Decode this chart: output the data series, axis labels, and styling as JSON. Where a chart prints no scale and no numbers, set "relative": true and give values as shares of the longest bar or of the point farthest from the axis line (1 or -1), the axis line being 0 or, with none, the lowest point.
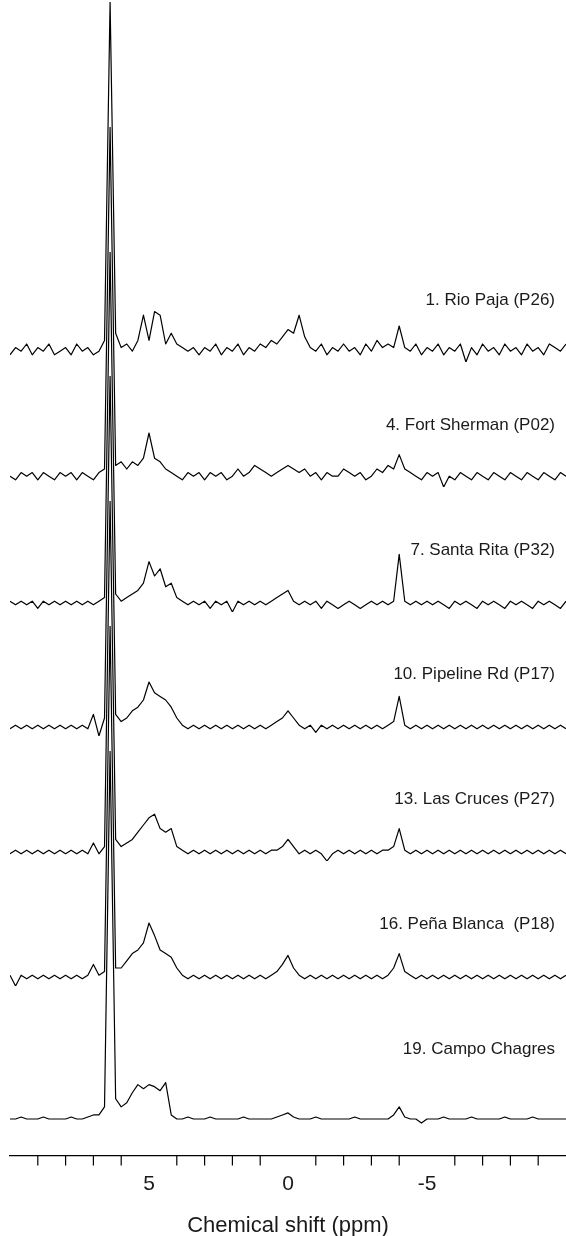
{
  "chart_data": [
    {
      "type": "line",
      "title": "1. Rio Paja (P26)",
      "relative": true,
      "marker": "none",
      "tick_labels": false,
      "categories": [
        null,
        null,
        null,
        null,
        null,
        null,
        null,
        null,
        null,
        null,
        null,
        null,
        null,
        null,
        null,
        null,
        null,
        null,
        null,
        null,
        null,
        null,
        null,
        null,
        null,
        null,
        null,
        null,
        null,
        null,
        null,
        null,
        null,
        null,
        null,
        null,
        null,
        null,
        null,
        null,
        null,
        null,
        null,
        null,
        null,
        null,
        null,
        null,
        null,
        null,
        null,
        null,
        null,
        null,
        null,
        null,
        null,
        null,
        null,
        null,
        null,
        null,
        null,
        null,
        null,
        null,
        null,
        null,
        null,
        null,
        null,
        null,
        null,
        null,
        null,
        null,
        null,
        null,
        null,
        null,
        null,
        null,
        null,
        null,
        null,
        null,
        null,
        null,
        null,
        null,
        null,
        null,
        null,
        null,
        null,
        null,
        null,
        null,
        null,
        null,
        null
      ],
      "series": [
        {
          "color": "#000000",
          "values": [
            0.02,
            0.04,
            0.03,
            0.05,
            0.02,
            0.04,
            0.03,
            0.05,
            0.02,
            0.03,
            0.04,
            0.02,
            0.05,
            0.03,
            0.04,
            0.02,
            0.03,
            0.06,
            1,
            0.08,
            0.04,
            0.05,
            0.03,
            0.06,
            0.13,
            0.06,
            0.14,
            0.13,
            0.05,
            0.08,
            0.05,
            0.04,
            0.03,
            0.04,
            0.02,
            0.04,
            0.03,
            0.05,
            0.02,
            0.04,
            0.03,
            0.05,
            0.02,
            0.04,
            0.03,
            0.05,
            0.04,
            0.06,
            0.05,
            0.07,
            0.09,
            0.08,
            0.13,
            0.07,
            0.04,
            0.03,
            0.05,
            0.02,
            0.04,
            0.03,
            0.05,
            0.03,
            0.04,
            0.02,
            0.05,
            0.03,
            0.06,
            0.04,
            0.05,
            0.04,
            0.1,
            0.04,
            0.03,
            0.05,
            0.02,
            0.04,
            0.03,
            0.05,
            0.02,
            0.04,
            0.03,
            0.05,
            0,
            0.04,
            0.02,
            0.05,
            0.03,
            0.04,
            0.02,
            0.05,
            0.03,
            0.04,
            0.02,
            0.05,
            0.03,
            0.04,
            0.02,
            0.05,
            0.04,
            0.03,
            0.05
          ]
        }
      ]
    },
    {
      "type": "line",
      "title": "4. Fort Sherman (P02)",
      "relative": true,
      "marker": "none",
      "tick_labels": false,
      "categories": [
        null,
        null,
        null,
        null,
        null,
        null,
        null,
        null,
        null,
        null,
        null,
        null,
        null,
        null,
        null,
        null,
        null,
        null,
        null,
        null,
        null,
        null,
        null,
        null,
        null,
        null,
        null,
        null,
        null,
        null,
        null,
        null,
        null,
        null,
        null,
        null,
        null,
        null,
        null,
        null,
        null,
        null,
        null,
        null,
        null,
        null,
        null,
        null,
        null,
        null,
        null,
        null,
        null,
        null,
        null,
        null,
        null,
        null,
        null,
        null,
        null,
        null,
        null,
        null,
        null,
        null,
        null,
        null,
        null,
        null,
        null,
        null,
        null,
        null,
        null,
        null,
        null,
        null,
        null,
        null,
        null,
        null,
        null,
        null,
        null,
        null,
        null,
        null,
        null,
        null,
        null,
        null,
        null,
        null,
        null,
        null,
        null,
        null,
        null,
        null,
        null
      ],
      "series": [
        {
          "color": "#000000",
          "values": [
            0.03,
            0.02,
            0.04,
            0.03,
            0.04,
            0.02,
            0.04,
            0.03,
            0.02,
            0.04,
            0.03,
            0.04,
            0.02,
            0.04,
            0.03,
            0.02,
            0.04,
            0.05,
            1,
            0.06,
            0.07,
            0.05,
            0.07,
            0.06,
            0.08,
            0.15,
            0.08,
            0.07,
            0.05,
            0.04,
            0.03,
            0.02,
            0.04,
            0.03,
            0.04,
            0.02,
            0.04,
            0.03,
            0.04,
            0.02,
            0.03,
            0.05,
            0.03,
            0.04,
            0.06,
            0.05,
            0.04,
            0.03,
            0.04,
            0.05,
            0.06,
            0.05,
            0.04,
            0.05,
            0.03,
            0.04,
            0.02,
            0.04,
            0.03,
            0.03,
            0.05,
            0.04,
            0.03,
            0.04,
            0.02,
            0.03,
            0.05,
            0.04,
            0.06,
            0.05,
            0.09,
            0.05,
            0.04,
            0.03,
            0.02,
            0.04,
            0.03,
            0.04,
            0,
            0.03,
            0.02,
            0.04,
            0.03,
            0.02,
            0.04,
            0.03,
            0.02,
            0.04,
            0.03,
            0.02,
            0.04,
            0.03,
            0.02,
            0.04,
            0.03,
            0.02,
            0.04,
            0.03,
            0.02,
            0.04,
            0.03
          ]
        }
      ]
    },
    {
      "type": "line",
      "title": "7. Santa Rita (P32)",
      "relative": true,
      "marker": "none",
      "tick_labels": false,
      "categories": [
        null,
        null,
        null,
        null,
        null,
        null,
        null,
        null,
        null,
        null,
        null,
        null,
        null,
        null,
        null,
        null,
        null,
        null,
        null,
        null,
        null,
        null,
        null,
        null,
        null,
        null,
        null,
        null,
        null,
        null,
        null,
        null,
        null,
        null,
        null,
        null,
        null,
        null,
        null,
        null,
        null,
        null,
        null,
        null,
        null,
        null,
        null,
        null,
        null,
        null,
        null,
        null,
        null,
        null,
        null,
        null,
        null,
        null,
        null,
        null,
        null,
        null,
        null,
        null,
        null,
        null,
        null,
        null,
        null,
        null,
        null,
        null,
        null,
        null,
        null,
        null,
        null,
        null,
        null,
        null,
        null,
        null,
        null,
        null,
        null,
        null,
        null,
        null,
        null,
        null,
        null,
        null,
        null,
        null,
        null,
        null,
        null,
        null,
        null,
        null,
        null
      ],
      "series": [
        {
          "color": "#000000",
          "values": [
            0.03,
            0.02,
            0.03,
            0.02,
            0.03,
            0.01,
            0.03,
            0.02,
            0.03,
            0.02,
            0.03,
            0.02,
            0.03,
            0.02,
            0.03,
            0.02,
            0.03,
            0.04,
            1,
            0.05,
            0.03,
            0.04,
            0.05,
            0.06,
            0.08,
            0.14,
            0.1,
            0.12,
            0.07,
            0.08,
            0.04,
            0.03,
            0.02,
            0.03,
            0.02,
            0.03,
            0.01,
            0.03,
            0.02,
            0.03,
            0,
            0.03,
            0.02,
            0.03,
            0.02,
            0.03,
            0.02,
            0.03,
            0.04,
            0.05,
            0.06,
            0.03,
            0.02,
            0.03,
            0.02,
            0.03,
            0.01,
            0.03,
            0.02,
            0.01,
            0.02,
            0.03,
            0.02,
            0.01,
            0.02,
            0.03,
            0.02,
            0.03,
            0.02,
            0.03,
            0.16,
            0.03,
            0.02,
            0.03,
            0.02,
            0.03,
            0.02,
            0.03,
            0.02,
            0.01,
            0.03,
            0.02,
            0.03,
            0.02,
            0.01,
            0.03,
            0.02,
            0.03,
            0.02,
            0.01,
            0.03,
            0.02,
            0.03,
            0.02,
            0.01,
            0.03,
            0.02,
            0.03,
            0.02,
            0.01,
            0.03
          ]
        }
      ]
    },
    {
      "type": "line",
      "title": "10. Pipeline Rd (P17)",
      "relative": true,
      "marker": "none",
      "tick_labels": false,
      "categories": [
        null,
        null,
        null,
        null,
        null,
        null,
        null,
        null,
        null,
        null,
        null,
        null,
        null,
        null,
        null,
        null,
        null,
        null,
        null,
        null,
        null,
        null,
        null,
        null,
        null,
        null,
        null,
        null,
        null,
        null,
        null,
        null,
        null,
        null,
        null,
        null,
        null,
        null,
        null,
        null,
        null,
        null,
        null,
        null,
        null,
        null,
        null,
        null,
        null,
        null,
        null,
        null,
        null,
        null,
        null,
        null,
        null,
        null,
        null,
        null,
        null,
        null,
        null,
        null,
        null,
        null,
        null,
        null,
        null,
        null,
        null,
        null,
        null,
        null,
        null,
        null,
        null,
        null,
        null,
        null,
        null,
        null,
        null,
        null,
        null,
        null,
        null,
        null,
        null,
        null,
        null,
        null,
        null,
        null,
        null,
        null,
        null,
        null,
        null,
        null,
        null
      ],
      "series": [
        {
          "color": "#000000",
          "values": [
            0.02,
            0.03,
            0.02,
            0.03,
            0.02,
            0.03,
            0.02,
            0.03,
            0.02,
            0.03,
            0.02,
            0.03,
            0.02,
            0.03,
            0.02,
            0.06,
            0,
            0.05,
            1,
            0.06,
            0.04,
            0.05,
            0.07,
            0.08,
            0.1,
            0.15,
            0.12,
            0.11,
            0.1,
            0.08,
            0.05,
            0.03,
            0.02,
            0.03,
            0.02,
            0.03,
            0.02,
            0.03,
            0.02,
            0.03,
            0.02,
            0.03,
            0.02,
            0.03,
            0.02,
            0.03,
            0.02,
            0.03,
            0.04,
            0.05,
            0.07,
            0.05,
            0.03,
            0.02,
            0.03,
            0.01,
            0.03,
            0.02,
            0.03,
            0.02,
            0.03,
            0.02,
            0.03,
            0.02,
            0.03,
            0.02,
            0.03,
            0.02,
            0.03,
            0.04,
            0.11,
            0.03,
            0.02,
            0.03,
            0.02,
            0.03,
            0.02,
            0.03,
            0.02,
            0.03,
            0.02,
            0.03,
            0.02,
            0.03,
            0.02,
            0.03,
            0.02,
            0.03,
            0.02,
            0.03,
            0.02,
            0.03,
            0.02,
            0.03,
            0.02,
            0.03,
            0.02,
            0.03,
            0.02,
            0.03,
            0.02
          ]
        }
      ]
    },
    {
      "type": "line",
      "title": "13. Las Cruces (P27)",
      "relative": true,
      "marker": "none",
      "tick_labels": false,
      "categories": [
        null,
        null,
        null,
        null,
        null,
        null,
        null,
        null,
        null,
        null,
        null,
        null,
        null,
        null,
        null,
        null,
        null,
        null,
        null,
        null,
        null,
        null,
        null,
        null,
        null,
        null,
        null,
        null,
        null,
        null,
        null,
        null,
        null,
        null,
        null,
        null,
        null,
        null,
        null,
        null,
        null,
        null,
        null,
        null,
        null,
        null,
        null,
        null,
        null,
        null,
        null,
        null,
        null,
        null,
        null,
        null,
        null,
        null,
        null,
        null,
        null,
        null,
        null,
        null,
        null,
        null,
        null,
        null,
        null,
        null,
        null,
        null,
        null,
        null,
        null,
        null,
        null,
        null,
        null,
        null,
        null,
        null,
        null,
        null,
        null,
        null,
        null,
        null,
        null,
        null,
        null,
        null,
        null,
        null,
        null,
        null,
        null,
        null,
        null,
        null,
        null
      ],
      "series": [
        {
          "color": "#000000",
          "values": [
            0.02,
            0.03,
            0.02,
            0.03,
            0.02,
            0.03,
            0.02,
            0.03,
            0.02,
            0.03,
            0.02,
            0.03,
            0.02,
            0.03,
            0.02,
            0.05,
            0.02,
            0.04,
            1,
            0.06,
            0.04,
            0.05,
            0.06,
            0.08,
            0.1,
            0.12,
            0.13,
            0.09,
            0.08,
            0.09,
            0.04,
            0.03,
            0.02,
            0.03,
            0.02,
            0.03,
            0.02,
            0.03,
            0.02,
            0.03,
            0.02,
            0.03,
            0.02,
            0.03,
            0.02,
            0.03,
            0.02,
            0.03,
            0.03,
            0.04,
            0.06,
            0.04,
            0.02,
            0.03,
            0.02,
            0.03,
            0.02,
            0,
            0.02,
            0.03,
            0.02,
            0.03,
            0.02,
            0.03,
            0.02,
            0.03,
            0.02,
            0.03,
            0.03,
            0.04,
            0.09,
            0.03,
            0.02,
            0.03,
            0.02,
            0.03,
            0.02,
            0.03,
            0.02,
            0.03,
            0.02,
            0.03,
            0.02,
            0.03,
            0.02,
            0.03,
            0.02,
            0.03,
            0.02,
            0.03,
            0.02,
            0.03,
            0.02,
            0.03,
            0.02,
            0.03,
            0.02,
            0.03,
            0.02,
            0.03,
            0.02
          ]
        }
      ]
    },
    {
      "type": "line",
      "title": "16. Peña Blanca  (P18)",
      "relative": true,
      "marker": "none",
      "tick_labels": false,
      "categories": [
        null,
        null,
        null,
        null,
        null,
        null,
        null,
        null,
        null,
        null,
        null,
        null,
        null,
        null,
        null,
        null,
        null,
        null,
        null,
        null,
        null,
        null,
        null,
        null,
        null,
        null,
        null,
        null,
        null,
        null,
        null,
        null,
        null,
        null,
        null,
        null,
        null,
        null,
        null,
        null,
        null,
        null,
        null,
        null,
        null,
        null,
        null,
        null,
        null,
        null,
        null,
        null,
        null,
        null,
        null,
        null,
        null,
        null,
        null,
        null,
        null,
        null,
        null,
        null,
        null,
        null,
        null,
        null,
        null,
        null,
        null,
        null,
        null,
        null,
        null,
        null,
        null,
        null,
        null,
        null,
        null,
        null,
        null,
        null,
        null,
        null,
        null,
        null,
        null,
        null,
        null,
        null,
        null,
        null,
        null,
        null,
        null,
        null,
        null,
        null,
        null
      ],
      "series": [
        {
          "color": "#000000",
          "values": [
            0.03,
            0,
            0.03,
            0.02,
            0.03,
            0.02,
            0.03,
            0.02,
            0.03,
            0.02,
            0.03,
            0.02,
            0.03,
            0.02,
            0.03,
            0.06,
            0.03,
            0.04,
            1,
            0.05,
            0.05,
            0.07,
            0.09,
            0.1,
            0.12,
            0.175,
            0.14,
            0.1,
            0.09,
            0.08,
            0.05,
            0.03,
            0.02,
            0.03,
            0.02,
            0.03,
            0.02,
            0.03,
            0.02,
            0.03,
            0.02,
            0.03,
            0.02,
            0.03,
            0.02,
            0.03,
            0.02,
            0.03,
            0.04,
            0.06,
            0.085,
            0.05,
            0.03,
            0.02,
            0.03,
            0.02,
            0.03,
            0.02,
            0.03,
            0.02,
            0.03,
            0.02,
            0.03,
            0.02,
            0.03,
            0.02,
            0.03,
            0.02,
            0.03,
            0.05,
            0.09,
            0.04,
            0.03,
            0.02,
            0.03,
            0.02,
            0.03,
            0.02,
            0.03,
            0.02,
            0.03,
            0.02,
            0.03,
            0.02,
            0.03,
            0.02,
            0.03,
            0.02,
            0.03,
            0.02,
            0.03,
            0.02,
            0.03,
            0.02,
            0.03,
            0.02,
            0.03,
            0.02,
            0.03,
            0.02,
            0.03
          ]
        }
      ]
    },
    {
      "type": "line",
      "title": "19. Campo Chagres",
      "relative": true,
      "marker": "none",
      "tick_labels": "x",
      "xlim": [
        10,
        -10
      ],
      "xlabel": "Chemical shift (ppm)",
      "xticks": [
        {
          "value": 9,
          "label": null
        },
        {
          "value": 8,
          "label": null
        },
        {
          "value": 7,
          "label": null
        },
        {
          "value": 6,
          "label": null
        },
        5,
        {
          "value": 4,
          "label": null
        },
        {
          "value": 3,
          "label": null
        },
        {
          "value": 2,
          "label": null
        },
        {
          "value": 1,
          "label": null
        },
        0,
        {
          "value": -1,
          "label": null
        },
        {
          "value": -2,
          "label": null
        },
        {
          "value": -3,
          "label": null
        },
        {
          "value": -4,
          "label": null
        },
        -5,
        {
          "value": -6,
          "label": null
        },
        {
          "value": -7,
          "label": null
        },
        {
          "value": -8,
          "label": null
        },
        {
          "value": -9,
          "label": null
        }
      ],
      "x": [
        10,
        9.8,
        9.6,
        9.4,
        9.2,
        9,
        8.8,
        8.6,
        8.4,
        8.2,
        8,
        7.8,
        7.6,
        7.4,
        7.2,
        7,
        6.8,
        6.6,
        6.4,
        6.2,
        6,
        5.8,
        5.6,
        5.4,
        5.2,
        5,
        4.8,
        4.6,
        4.4,
        4.2,
        4,
        3.8,
        3.6,
        3.4,
        3.2,
        3,
        2.8,
        2.6,
        2.4,
        2.2,
        2,
        1.8,
        1.6,
        1.4,
        1.2,
        1,
        0.8,
        0.6,
        0.4,
        0.2,
        0,
        -0.2,
        -0.4,
        -0.6,
        -0.8,
        -1,
        -1.2,
        -1.4,
        -1.6,
        -1.8,
        -2,
        -2.2,
        -2.4,
        -2.6,
        -2.8,
        -3,
        -3.2,
        -3.4,
        -3.6,
        -3.8,
        -4,
        -4.2,
        -4.4,
        -4.6,
        -4.8,
        -5,
        -5.2,
        -5.4,
        -5.6,
        -5.8,
        -6,
        -6.2,
        -6.4,
        -6.6,
        -6.8,
        -7,
        -7.2,
        -7.4,
        -7.6,
        -7.8,
        -8,
        -8.2,
        -8.4,
        -8.6,
        -8.8,
        -9,
        -9.2,
        -9.4,
        -9.6,
        -9.8,
        -10
      ],
      "series": [
        {
          "color": "#000000",
          "values": [
            0.09,
            0.09,
            0.095,
            0.09,
            0.09,
            0.09,
            0.095,
            0.09,
            0.09,
            0.09,
            0.09,
            0.095,
            0.09,
            0.09,
            0.095,
            0.1,
            0.1,
            0.12,
            1,
            0.14,
            0.12,
            0.13,
            0.155,
            0.175,
            0.165,
            0.175,
            0.17,
            0.16,
            0.18,
            0.1,
            0.09,
            0.09,
            0.095,
            0.09,
            0.09,
            0.09,
            0.095,
            0.09,
            0.09,
            0.09,
            0.09,
            0.09,
            0.095,
            0.09,
            0.09,
            0.09,
            0.09,
            0.09,
            0.095,
            0.1,
            0.105,
            0.095,
            0.09,
            0.09,
            0.09,
            0.095,
            0.09,
            0.09,
            0.09,
            0.09,
            0.09,
            0.09,
            0.095,
            0.09,
            0.09,
            0.09,
            0.09,
            0.09,
            0.09,
            0.1,
            0.12,
            0.095,
            0.09,
            0.09,
            0.08,
            0.09,
            0.09,
            0.09,
            0.095,
            0.09,
            0.09,
            0.09,
            0.09,
            0.095,
            0.09,
            0.09,
            0.09,
            0.09,
            0.09,
            0.095,
            0.09,
            0.09,
            0.09,
            0.09,
            0.095,
            0.09,
            0.09,
            0.09,
            0.09,
            0.09,
            0.09
          ]
        }
      ]
    }
  ]
}
